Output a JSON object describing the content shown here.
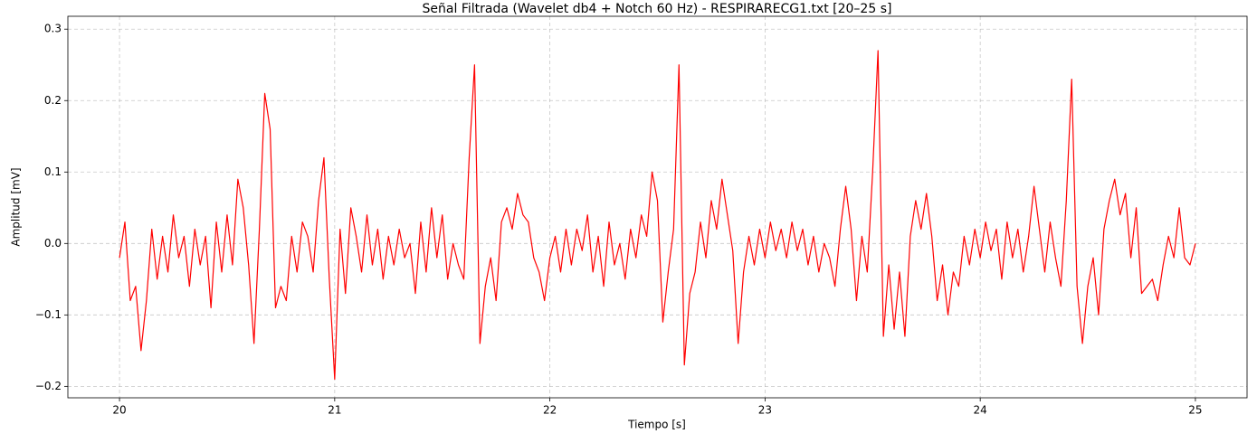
{
  "chart_data": {
    "type": "line",
    "title": "Señal Filtrada (Wavelet db4 + Notch 60 Hz) - RESPIRARECG1.txt [20–25 s]",
    "x_label": "Tiempo [s]",
    "y_label": "Amplitud [mV]",
    "color": "#ff0000",
    "grid": true,
    "xlim": [
      19.76,
      25.24
    ],
    "ylim": [
      -0.216,
      0.318
    ],
    "xticks": [
      20,
      21,
      22,
      23,
      24,
      25
    ],
    "yticks": [
      {
        "value": -0.2,
        "label": "−0.2"
      },
      {
        "value": -0.1,
        "label": "−0.1"
      },
      {
        "value": 0,
        "label": "0.0"
      },
      0.1,
      0.2,
      0.3
    ],
    "x": [
      20.0,
      20.025,
      20.05,
      20.075,
      20.1,
      20.125,
      20.15,
      20.175,
      20.2,
      20.225,
      20.25,
      20.275,
      20.3,
      20.325,
      20.35,
      20.375,
      20.4,
      20.425,
      20.45,
      20.475,
      20.5,
      20.525,
      20.55,
      20.575,
      20.6,
      20.625,
      20.65,
      20.675,
      20.7,
      20.725,
      20.75,
      20.775,
      20.8,
      20.825,
      20.85,
      20.875,
      20.9,
      20.925,
      20.95,
      20.975,
      21.0,
      21.025,
      21.05,
      21.075,
      21.1,
      21.125,
      21.15,
      21.175,
      21.2,
      21.225,
      21.25,
      21.275,
      21.3,
      21.325,
      21.35,
      21.375,
      21.4,
      21.425,
      21.45,
      21.475,
      21.5,
      21.525,
      21.55,
      21.575,
      21.6,
      21.625,
      21.65,
      21.675,
      21.7,
      21.725,
      21.75,
      21.775,
      21.8,
      21.825,
      21.85,
      21.875,
      21.9,
      21.925,
      21.95,
      21.975,
      22.0,
      22.025,
      22.05,
      22.075,
      22.1,
      22.125,
      22.15,
      22.175,
      22.2,
      22.225,
      22.25,
      22.275,
      22.3,
      22.325,
      22.35,
      22.375,
      22.4,
      22.425,
      22.45,
      22.475,
      22.5,
      22.525,
      22.55,
      22.575,
      22.6,
      22.625,
      22.65,
      22.675,
      22.7,
      22.725,
      22.75,
      22.775,
      22.8,
      22.825,
      22.85,
      22.875,
      22.9,
      22.925,
      22.95,
      22.975,
      23.0,
      23.025,
      23.05,
      23.075,
      23.1,
      23.125,
      23.15,
      23.175,
      23.2,
      23.225,
      23.25,
      23.275,
      23.3,
      23.325,
      23.35,
      23.375,
      23.4,
      23.425,
      23.45,
      23.475,
      23.5,
      23.525,
      23.55,
      23.575,
      23.6,
      23.625,
      23.65,
      23.675,
      23.7,
      23.725,
      23.75,
      23.775,
      23.8,
      23.825,
      23.85,
      23.875,
      23.9,
      23.925,
      23.95,
      23.975,
      24.0,
      24.025,
      24.05,
      24.075,
      24.1,
      24.125,
      24.15,
      24.175,
      24.2,
      24.225,
      24.25,
      24.275,
      24.3,
      24.325,
      24.35,
      24.375,
      24.4,
      24.425,
      24.45,
      24.475,
      24.5,
      24.525,
      24.55,
      24.575,
      24.6,
      24.625,
      24.65,
      24.675,
      24.7,
      24.725,
      24.75,
      24.775,
      24.8,
      24.825,
      24.85,
      24.875,
      24.9,
      24.925,
      24.95,
      24.975,
      25.0
    ],
    "values": [
      -0.02,
      0.03,
      -0.08,
      -0.06,
      -0.15,
      -0.08,
      0.02,
      -0.05,
      0.01,
      -0.04,
      0.04,
      -0.02,
      0.01,
      -0.06,
      0.02,
      -0.03,
      0.01,
      -0.09,
      0.03,
      -0.04,
      0.04,
      -0.03,
      0.09,
      0.05,
      -0.03,
      -0.14,
      0.02,
      0.21,
      0.16,
      -0.09,
      -0.06,
      -0.08,
      0.01,
      -0.04,
      0.03,
      0.01,
      -0.04,
      0.06,
      0.12,
      -0.05,
      -0.19,
      0.02,
      -0.07,
      0.05,
      0.01,
      -0.04,
      0.04,
      -0.03,
      0.02,
      -0.05,
      0.01,
      -0.03,
      0.02,
      -0.02,
      0.0,
      -0.07,
      0.03,
      -0.04,
      0.05,
      -0.02,
      0.04,
      -0.05,
      0.0,
      -0.03,
      -0.05,
      0.12,
      0.25,
      -0.14,
      -0.06,
      -0.02,
      -0.08,
      0.03,
      0.05,
      0.02,
      0.07,
      0.04,
      0.03,
      -0.02,
      -0.04,
      -0.08,
      -0.02,
      0.01,
      -0.04,
      0.02,
      -0.03,
      0.02,
      -0.01,
      0.04,
      -0.04,
      0.01,
      -0.06,
      0.03,
      -0.03,
      0.0,
      -0.05,
      0.02,
      -0.02,
      0.04,
      0.01,
      0.1,
      0.06,
      -0.11,
      -0.04,
      0.02,
      0.25,
      -0.17,
      -0.07,
      -0.04,
      0.03,
      -0.02,
      0.06,
      0.02,
      0.09,
      0.04,
      -0.01,
      -0.14,
      -0.04,
      0.01,
      -0.03,
      0.02,
      -0.02,
      0.03,
      -0.01,
      0.02,
      -0.02,
      0.03,
      -0.01,
      0.02,
      -0.03,
      0.01,
      -0.04,
      0.0,
      -0.02,
      -0.06,
      0.02,
      0.08,
      0.02,
      -0.08,
      0.01,
      -0.04,
      0.1,
      0.27,
      -0.13,
      -0.03,
      -0.12,
      -0.04,
      -0.13,
      0.01,
      0.06,
      0.02,
      0.07,
      0.01,
      -0.08,
      -0.03,
      -0.1,
      -0.04,
      -0.06,
      0.01,
      -0.03,
      0.02,
      -0.02,
      0.03,
      -0.01,
      0.02,
      -0.05,
      0.03,
      -0.02,
      0.02,
      -0.04,
      0.01,
      0.08,
      0.02,
      -0.04,
      0.03,
      -0.02,
      -0.06,
      0.06,
      0.23,
      -0.06,
      -0.14,
      -0.06,
      -0.02,
      -0.1,
      0.02,
      0.06,
      0.09,
      0.04,
      0.07,
      -0.02,
      0.05,
      -0.07,
      -0.06,
      -0.05,
      -0.08,
      -0.03,
      0.01,
      -0.02,
      0.05,
      -0.02,
      -0.03,
      0.0
    ]
  }
}
